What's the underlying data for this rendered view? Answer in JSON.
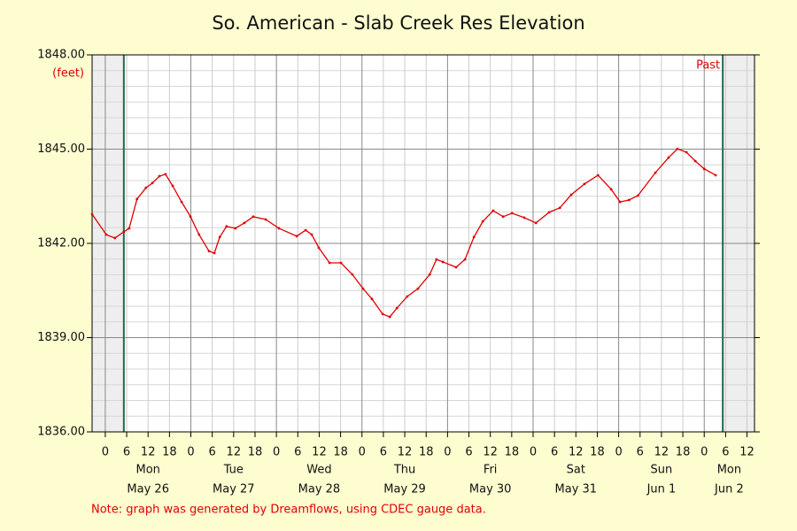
{
  "chart_data": {
    "type": "line",
    "title": "So. American - Slab Creek Res Elevation",
    "y_label": "(feet)",
    "past_label": "Past",
    "note": "Note: graph was generated by Dreamflows, using CDEC gauge data.",
    "color": "#e00000",
    "xlim": [
      -3.7,
      182.1
    ],
    "ylim": [
      1836,
      1848
    ],
    "yticks": [
      {
        "value": 1836,
        "label": "1836.00"
      },
      {
        "value": 1839,
        "label": "1839.00"
      },
      {
        "value": 1842,
        "label": "1842.00"
      },
      {
        "value": 1845,
        "label": "1845.00"
      },
      {
        "value": 1848,
        "label": "1848.00"
      }
    ],
    "minor_ystep": 0.5,
    "xticks": [
      {
        "value": 0,
        "label": "0"
      },
      {
        "value": 6,
        "label": "6"
      },
      {
        "value": 12,
        "label": "12"
      },
      {
        "value": 18,
        "label": "18"
      },
      {
        "value": 24,
        "label": "0"
      },
      {
        "value": 30,
        "label": "6"
      },
      {
        "value": 36,
        "label": "12"
      },
      {
        "value": 42,
        "label": "18"
      },
      {
        "value": 48,
        "label": "0"
      },
      {
        "value": 54,
        "label": "6"
      },
      {
        "value": 60,
        "label": "12"
      },
      {
        "value": 66,
        "label": "18"
      },
      {
        "value": 72,
        "label": "0"
      },
      {
        "value": 78,
        "label": "6"
      },
      {
        "value": 84,
        "label": "12"
      },
      {
        "value": 90,
        "label": "18"
      },
      {
        "value": 96,
        "label": "0"
      },
      {
        "value": 102,
        "label": "6"
      },
      {
        "value": 108,
        "label": "12"
      },
      {
        "value": 114,
        "label": "18"
      },
      {
        "value": 120,
        "label": "0"
      },
      {
        "value": 126,
        "label": "6"
      },
      {
        "value": 132,
        "label": "12"
      },
      {
        "value": 138,
        "label": "18"
      },
      {
        "value": 144,
        "label": "0"
      },
      {
        "value": 150,
        "label": "6"
      },
      {
        "value": 156,
        "label": "12"
      },
      {
        "value": 162,
        "label": "18"
      },
      {
        "value": 168,
        "label": "0"
      },
      {
        "value": 174,
        "label": "6"
      },
      {
        "value": 180,
        "label": "12"
      }
    ],
    "day_length": 24,
    "day_labels": [
      {
        "value": 12,
        "label": "Mon",
        "date": "May 26"
      },
      {
        "value": 36,
        "label": "Tue",
        "date": "May 27"
      },
      {
        "value": 60,
        "label": "Wed",
        "date": "May 28"
      },
      {
        "value": 84,
        "label": "Thu",
        "date": "May 29"
      },
      {
        "value": 108,
        "label": "Fri",
        "date": "May 30"
      },
      {
        "value": 132,
        "label": "Sat",
        "date": "May 31"
      },
      {
        "value": 156,
        "label": "Sun",
        "date": "Jun 1"
      },
      {
        "value": 175,
        "label": "Mon",
        "date": "Jun 2"
      }
    ],
    "shaded_before": 5.2,
    "shaded_after": 173.2,
    "x": [
      -3.7,
      0.25,
      2.7,
      5.2,
      6.7,
      8.9,
      11.4,
      13.2,
      15.2,
      16.9,
      18.9,
      21.4,
      23.9,
      26.3,
      29.1,
      30.6,
      32.1,
      34,
      36.5,
      39,
      41.5,
      45,
      48.7,
      53.7,
      56.2,
      57.9,
      59.9,
      62.9,
      66.1,
      69.3,
      72.3,
      74.8,
      77.8,
      79.8,
      81.8,
      84.7,
      87.7,
      91,
      92.9,
      94.7,
      98.4,
      100.9,
      103.4,
      105.9,
      108.8,
      111.6,
      114.1,
      117.5,
      120.8,
      124.5,
      127.5,
      130.7,
      134.4,
      138.2,
      141.9,
      144.4,
      146.9,
      149.4,
      154.3,
      158,
      160.5,
      163,
      165.5,
      168,
      171.2
    ],
    "values": [
      1842.93,
      1842.28,
      1842.17,
      1842.37,
      1842.48,
      1843.41,
      1843.77,
      1843.92,
      1844.14,
      1844.2,
      1843.83,
      1843.32,
      1842.85,
      1842.28,
      1841.75,
      1841.69,
      1842.2,
      1842.54,
      1842.48,
      1842.65,
      1842.85,
      1842.76,
      1842.48,
      1842.23,
      1842.42,
      1842.28,
      1841.86,
      1841.38,
      1841.38,
      1841.01,
      1840.56,
      1840.23,
      1839.75,
      1839.66,
      1839.94,
      1840.31,
      1840.56,
      1841.01,
      1841.49,
      1841.41,
      1841.24,
      1841.49,
      1842.2,
      1842.7,
      1843.04,
      1842.85,
      1842.96,
      1842.82,
      1842.65,
      1842.99,
      1843.13,
      1843.55,
      1843.89,
      1844.17,
      1843.72,
      1843.32,
      1843.38,
      1843.52,
      1844.25,
      1844.73,
      1845.01,
      1844.9,
      1844.62,
      1844.37,
      1844.17
    ]
  }
}
